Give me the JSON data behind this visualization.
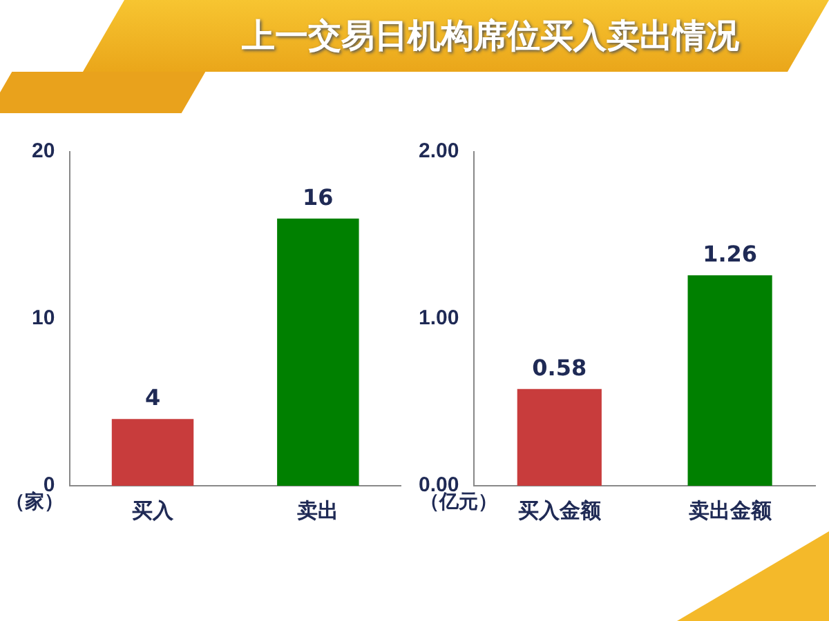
{
  "chart_data": [
    {
      "type": "bar",
      "title": "上一交易日机构席位买入卖出情况",
      "ylabel": "（家）",
      "categories": [
        "买入",
        "卖出"
      ],
      "colors": [
        "#c83c3c",
        "#008000"
      ],
      "values": [
        4,
        16
      ],
      "ylim": [
        0,
        20
      ],
      "yticks": [
        0,
        10,
        20
      ],
      "grid": false,
      "legend": false,
      "data_labels": true
    },
    {
      "type": "bar",
      "ylabel": "（亿元）",
      "categories": [
        "买入金额",
        "卖出金额"
      ],
      "colors": [
        "#c83c3c",
        "#008000"
      ],
      "values": [
        0.58,
        1.26
      ],
      "ylim": [
        0,
        2
      ],
      "yticks": [
        {
          "value": 0,
          "label": "0.00"
        },
        {
          "value": 1,
          "label": "1.00"
        },
        {
          "value": 2,
          "label": "2.00"
        }
      ],
      "grid": false,
      "legend": false,
      "data_labels": true
    }
  ]
}
